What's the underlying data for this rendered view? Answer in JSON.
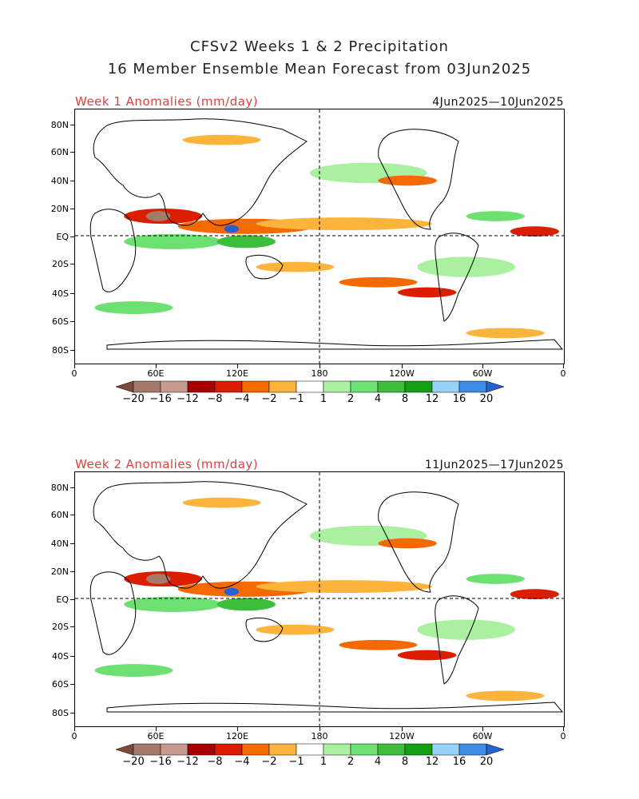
{
  "title": {
    "line1": "CFSv2 Weeks 1 & 2 Precipitation",
    "line2": "16 Member Ensemble Mean Forecast from 03Jun2025"
  },
  "panels": [
    {
      "label": "Week 1 Anomalies (mm/day)",
      "dates": "4Jun2025—10Jun2025"
    },
    {
      "label": "Week 2 Anomalies (mm/day)",
      "dates": "11Jun2025—17Jun2025"
    }
  ],
  "axes": {
    "lat_labels": [
      "80N",
      "60N",
      "40N",
      "20N",
      "EQ",
      "20S",
      "40S",
      "60S",
      "80S"
    ],
    "lon_labels": [
      "0",
      "60E",
      "120E",
      "180",
      "120W",
      "60W",
      "0"
    ]
  },
  "legend": {
    "labels": [
      "−20",
      "−16",
      "−12",
      "−8",
      "−4",
      "−2",
      "−1",
      "1",
      "2",
      "4",
      "8",
      "12",
      "16",
      "20"
    ],
    "colors": [
      "#7a4a3a",
      "#a67a6a",
      "#c79a90",
      "#a80000",
      "#dc1e00",
      "#f56a00",
      "#fcb43c",
      "#ffffff",
      "#aaf0a0",
      "#6ce070",
      "#3cbe3c",
      "#14a014",
      "#96d2fa",
      "#3c8ce6",
      "#2860d2"
    ]
  }
}
